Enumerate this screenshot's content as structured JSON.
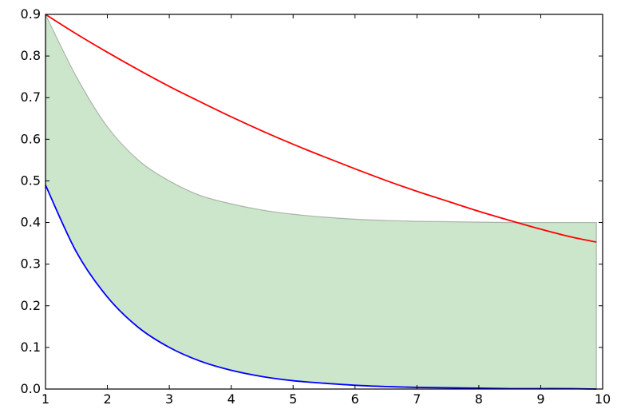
{
  "chart_data": {
    "type": "area",
    "title": "",
    "xlabel": "",
    "ylabel": "",
    "xlim": [
      1,
      10
    ],
    "ylim": [
      0,
      0.9
    ],
    "grid": false,
    "x_ticks": [
      "1",
      "2",
      "3",
      "4",
      "5",
      "6",
      "7",
      "8",
      "9",
      "10"
    ],
    "y_ticks": [
      "0.0",
      "0.1",
      "0.2",
      "0.3",
      "0.4",
      "0.5",
      "0.6",
      "0.7",
      "0.8",
      "0.9"
    ],
    "x": [
      1.0,
      1.5,
      2.0,
      2.5,
      3.0,
      3.5,
      4.0,
      4.5,
      5.0,
      5.5,
      6.0,
      6.5,
      7.0,
      7.5,
      8.0,
      8.5,
      9.0,
      9.5,
      9.9
    ],
    "series": [
      {
        "color": "#ff0000",
        "kind": "line",
        "values": [
          0.9,
          0.853,
          0.809,
          0.767,
          0.727,
          0.69,
          0.654,
          0.62,
          0.588,
          0.558,
          0.529,
          0.501,
          0.475,
          0.451,
          0.427,
          0.405,
          0.384,
          0.365,
          0.353
        ]
      },
      {
        "color": "#0000ff",
        "kind": "line",
        "values": [
          0.49,
          0.329,
          0.221,
          0.148,
          0.1,
          0.067,
          0.045,
          0.03,
          0.02,
          0.014,
          0.009,
          0.006,
          0.004,
          0.003,
          0.002,
          0.001,
          0.001,
          0.001,
          0.0
        ]
      },
      {
        "color": "#008000",
        "kind": "fill_between",
        "opacity": 0.2,
        "lower": "series1",
        "values": [
          0.9,
          0.75,
          0.63,
          0.55,
          0.5,
          0.465,
          0.445,
          0.43,
          0.42,
          0.413,
          0.408,
          0.405,
          0.403,
          0.402,
          0.401,
          0.4,
          0.4,
          0.4,
          0.4
        ]
      }
    ]
  }
}
